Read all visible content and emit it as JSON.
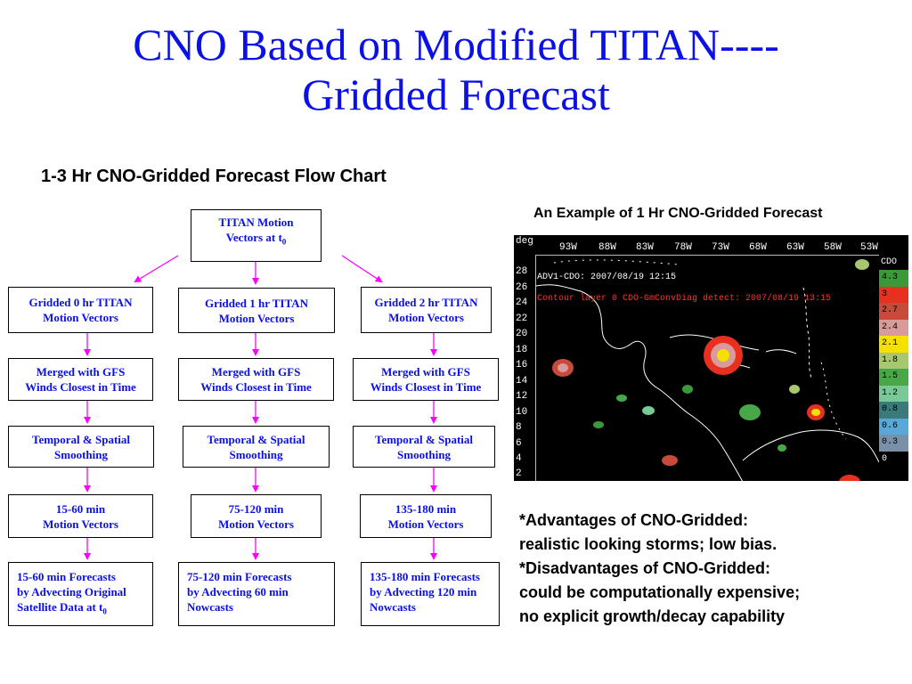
{
  "title": {
    "line1": "CNO Based on Modified TITAN----",
    "line2": "Gridded Forecast"
  },
  "flow_chart": {
    "heading": "1-3 Hr CNO-Gridded Forecast Flow Chart",
    "top_box": {
      "line1": "TITAN Motion",
      "line2": "Vectors at t",
      "sub": "0"
    },
    "columns": [
      {
        "gridded": [
          "Gridded 0 hr TITAN",
          "Motion Vectors"
        ],
        "merged": [
          "Merged with GFS",
          "Winds Closest in Time"
        ],
        "smoothing": [
          "Temporal & Spatial",
          "Smoothing"
        ],
        "motion": [
          "15-60 min",
          "Motion Vectors"
        ],
        "forecast": [
          "15-60 min Forecasts",
          "by Advecting Original",
          "Satellite Data at t"
        ],
        "forecast_sub": "0"
      },
      {
        "gridded": [
          "Gridded 1 hr TITAN",
          "Motion Vectors"
        ],
        "merged": [
          "Merged with GFS",
          "Winds Closest in Time"
        ],
        "smoothing": [
          "Temporal & Spatial",
          "Smoothing"
        ],
        "motion": [
          "75-120 min",
          "Motion Vectors"
        ],
        "forecast": [
          "75-120 min Forecasts",
          "by Advecting 60 min",
          "Nowcasts"
        ],
        "forecast_sub": ""
      },
      {
        "gridded": [
          "Gridded 2 hr TITAN",
          "Motion Vectors"
        ],
        "merged": [
          "Merged with GFS",
          "Winds Closest in Time"
        ],
        "smoothing": [
          "Temporal & Spatial",
          "Smoothing"
        ],
        "motion": [
          "135-180 min",
          "Motion Vectors"
        ],
        "forecast": [
          "135-180 min Forecasts",
          "by Advecting 120 min",
          "Nowcasts"
        ],
        "forecast_sub": ""
      }
    ],
    "arrow_color": "#ff00ff"
  },
  "example": {
    "heading": "An Example of 1 Hr CNO-Gridded Forecast",
    "map": {
      "corner_label": "deg",
      "longitudes": [
        "93W",
        "88W",
        "83W",
        "78W",
        "73W",
        "68W",
        "63W",
        "58W",
        "53W"
      ],
      "latitudes": [
        "28",
        "26",
        "24",
        "22",
        "20",
        "18",
        "16",
        "14",
        "12",
        "10",
        "8",
        "6",
        "4",
        "2"
      ],
      "overlay_line1": "ADV1-CDO: 2007/08/19 12:15",
      "overlay_line2": "Contour layer 0 CDO-GmConvDiag detect: 2007/08/19 13:15",
      "legend_title": "CDO",
      "legend": [
        {
          "label": "4.3",
          "color": "#3a9a3a"
        },
        {
          "label": "3",
          "color": "#e83020"
        },
        {
          "label": "2.7",
          "color": "#c84a3a"
        },
        {
          "label": "2.4",
          "color": "#d89a9a"
        },
        {
          "label": "2.1",
          "color": "#f5e000"
        },
        {
          "label": "1.8",
          "color": "#a8c870"
        },
        {
          "label": "1.5",
          "color": "#48a848"
        },
        {
          "label": "1.2",
          "color": "#78c898"
        },
        {
          "label": "0.8",
          "color": "#3a7a7a"
        },
        {
          "label": "0.6",
          "color": "#58a8d8"
        },
        {
          "label": "0.3",
          "color": "#7a90a8"
        },
        {
          "label": "0",
          "color": "#000000"
        }
      ]
    }
  },
  "notes": [
    "*Advantages of CNO-Gridded:",
    "realistic looking storms; low bias.",
    "*Disadvantages of CNO-Gridded:",
    "could be computationally expensive;",
    "no explicit growth/decay capability"
  ]
}
